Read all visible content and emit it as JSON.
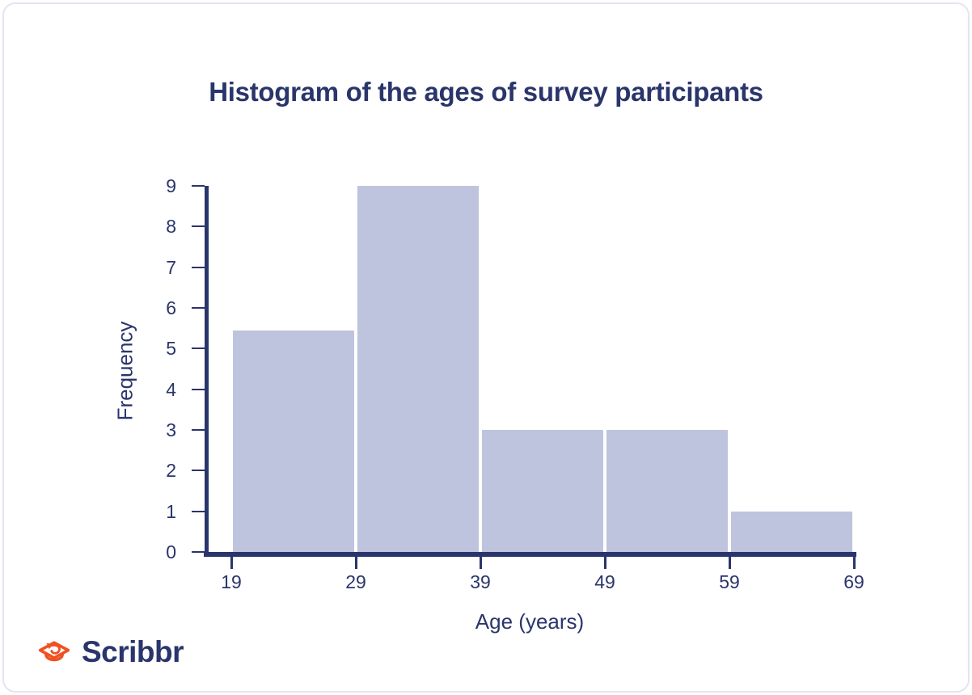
{
  "chart_data": {
    "type": "bar",
    "subtype": "histogram",
    "title": "Histogram of the ages of survey participants",
    "xlabel": "Age (years)",
    "ylabel": "Frequency",
    "bin_edges": [
      19,
      29,
      39,
      49,
      59,
      69
    ],
    "series": [
      {
        "name": "Frequency",
        "values": [
          5.45,
          9,
          3,
          3,
          1
        ]
      }
    ],
    "x_tick_labels": [
      "19",
      "29",
      "39",
      "49",
      "59",
      "69"
    ],
    "y_tick_labels": [
      "0",
      "1",
      "2",
      "3",
      "4",
      "5",
      "6",
      "7",
      "8",
      "9"
    ],
    "xlim": [
      19,
      69
    ],
    "ylim": [
      0,
      9
    ],
    "grid": false,
    "legend": false,
    "colors": {
      "bar_fill": "#bec3de",
      "axis": "#2a356b",
      "text": "#2a356b"
    }
  },
  "branding": {
    "logo_text": "Scribbr",
    "logo_icon": "graduation-cap-arrow-icon",
    "logo_icon_color": "#f05123",
    "logo_text_color": "#2a356b"
  }
}
